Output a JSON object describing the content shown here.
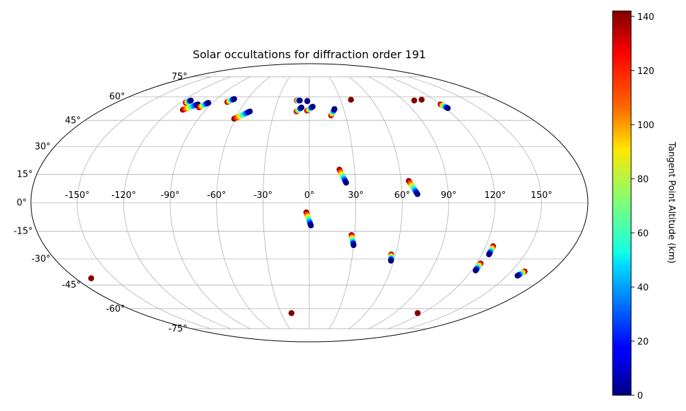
{
  "chart_data": {
    "type": "scatter",
    "projection": "mollweide",
    "title": "Solar occultations for diffraction order 191",
    "xlabel": "",
    "ylabel": "",
    "x_ticks": [
      "-150°",
      "-120°",
      "-90°",
      "-60°",
      "-30°",
      "0°",
      "30°",
      "60°",
      "90°",
      "120°",
      "150°"
    ],
    "x_tick_values": [
      -150,
      -120,
      -90,
      -60,
      -30,
      0,
      30,
      60,
      90,
      120,
      150
    ],
    "y_ticks": [
      "75°",
      "60°",
      "45°",
      "30°",
      "15°",
      "0°",
      "-15°",
      "-30°",
      "-45°",
      "-60°",
      "-75°"
    ],
    "y_tick_values": [
      75,
      60,
      45,
      30,
      15,
      0,
      -15,
      -30,
      -45,
      -60,
      -75
    ],
    "grid": true,
    "colorbar": {
      "label": "Tangent Point Altitude (km)",
      "colormap": "jet",
      "range": [
        0,
        142
      ],
      "ticks": [
        "0",
        "20",
        "40",
        "60",
        "80",
        "100",
        "120",
        "140"
      ],
      "tick_values": [
        0,
        20,
        40,
        60,
        80,
        100,
        120,
        140
      ]
    },
    "tracks": [
      {
        "lon_start": -115,
        "lat_start": 56.0,
        "lon_end": -113,
        "lat_end": 57.5
      },
      {
        "lon_start": -110,
        "lat_start": 51.5,
        "lon_end": -102,
        "lat_end": 55.0
      },
      {
        "lon_start": -98,
        "lat_start": 53.0,
        "lon_end": -94,
        "lat_end": 56.0
      },
      {
        "lon_start": -77,
        "lat_start": 56.5,
        "lon_end": -73,
        "lat_end": 58.5
      },
      {
        "lon_start": -61,
        "lat_start": 46.0,
        "lon_end": -51,
        "lat_end": 50.5
      },
      {
        "lon_start": -11,
        "lat_start": 50.5,
        "lon_end": -7,
        "lat_end": 53.0
      },
      {
        "lon_start": -12,
        "lat_start": 57.5,
        "lon_end": -9,
        "lat_end": 57.5
      },
      {
        "lon_start": -2,
        "lat_start": 57.5,
        "lon_end": -2,
        "lat_end": 57.0
      },
      {
        "lon_start": -2,
        "lat_start": 51.0,
        "lon_end": 3,
        "lat_end": 53.5
      },
      {
        "lon_start": 18,
        "lat_start": 48.0,
        "lon_end": 22,
        "lat_end": 52.0
      },
      {
        "lon_start": 40,
        "lat_start": 58.0,
        "lon_end": 40,
        "lat_end": 58.0
      },
      {
        "lon_start": 100,
        "lat_start": 57.5,
        "lon_end": 100,
        "lat_end": 57.5
      },
      {
        "lon_start": 108,
        "lat_start": 58.0,
        "lon_end": 108,
        "lat_end": 58.0
      },
      {
        "lon_start": 120,
        "lat_start": 55.0,
        "lon_end": 122,
        "lat_end": 52.5
      },
      {
        "lon_start": 20,
        "lat_start": 17.5,
        "lon_end": 24,
        "lat_end": 10.5
      },
      {
        "lon_start": 65,
        "lat_start": 11.5,
        "lon_end": 70,
        "lat_end": 4.5
      },
      {
        "lon_start": -2,
        "lat_start": -5.0,
        "lon_end": 1,
        "lat_end": -12.0
      },
      {
        "lon_start": 28,
        "lat_start": -17.0,
        "lon_end": 30,
        "lat_end": -22.5
      },
      {
        "lon_start": 57,
        "lat_start": -27.5,
        "lon_end": 58,
        "lat_end": -31.0
      },
      {
        "lon_start": 125,
        "lat_start": -23.0,
        "lon_end": 125,
        "lat_end": -27.5
      },
      {
        "lon_start": 123,
        "lat_start": -32.5,
        "lon_end": 123,
        "lat_end": -36.5
      },
      {
        "lon_start": 160,
        "lat_start": -37.0,
        "lon_end": 158,
        "lat_end": -39.5
      },
      {
        "lon_start": -168,
        "lat_start": -41.0,
        "lon_end": -168,
        "lat_end": -41.0
      },
      {
        "lon_start": -19,
        "lat_start": -63.0,
        "lon_end": -19,
        "lat_end": -63.0
      },
      {
        "lon_start": 115,
        "lat_start": -63.0,
        "lon_end": 115,
        "lat_end": -63.0
      }
    ]
  }
}
